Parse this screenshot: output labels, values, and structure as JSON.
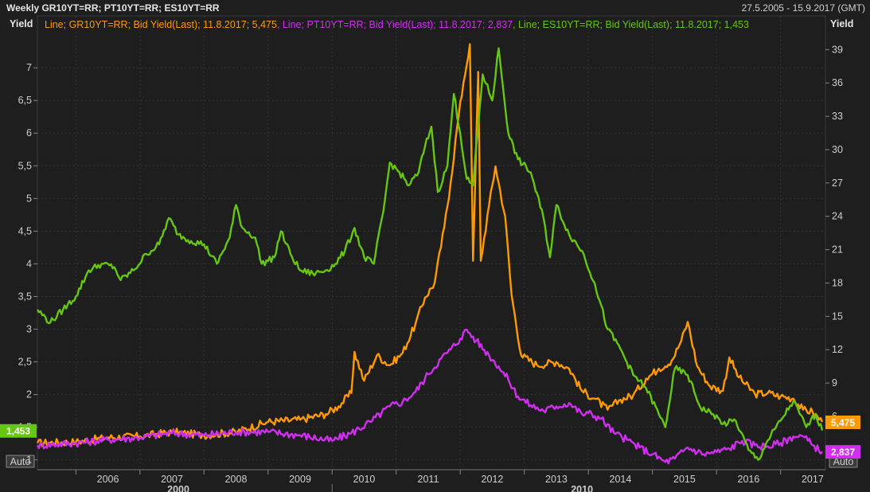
{
  "header": {
    "title": "Weekly GR10YT=RR; PT10YT=RR; ES10YT=RR",
    "range": "27.5.2005 - 15.9.2017 (GMT)"
  },
  "chart_data": {
    "type": "line",
    "left_axis": {
      "label": "Yield",
      "ticks": [
        1,
        1.5,
        2,
        2.5,
        3,
        3.5,
        4,
        4.5,
        5,
        5.5,
        6,
        6.5,
        7
      ],
      "tick_labels": [
        "1",
        "1,5",
        "2",
        "2,5",
        "3",
        "3,5",
        "4",
        "4,5",
        "5",
        "5,5",
        "6",
        "6,5",
        "7"
      ],
      "range": [
        0.85,
        7.55
      ],
      "auto_label": "Auto"
    },
    "right_axis": {
      "label": "Yield",
      "ticks": [
        3,
        6,
        9,
        12,
        15,
        18,
        21,
        24,
        27,
        30,
        33,
        36,
        39
      ],
      "tick_labels": [
        "3",
        "6",
        "9",
        "12",
        "15",
        "18",
        "21",
        "24",
        "27",
        "30",
        "33",
        "36",
        "39"
      ],
      "range": [
        1.2,
        40.6
      ],
      "auto_label": "Auto"
    },
    "x_axis": {
      "range": [
        2005.4,
        2017.7
      ],
      "years": [
        "2006",
        "2007",
        "2008",
        "2009",
        "2010",
        "2011",
        "2012",
        "2013",
        "2014",
        "2015",
        "2016",
        "2017"
      ],
      "decades": [
        "2000",
        "2010"
      ]
    },
    "grid": true,
    "legend_position": "top-left",
    "series": [
      {
        "name": "Line; GR10YT=RR; Bid Yield(Last); 11.8.2017; 5,475",
        "axis": "right",
        "color": "#ff9a00",
        "last_label": "5,475",
        "points": [
          [
            2005.4,
            3.6
          ],
          [
            2006.0,
            3.7
          ],
          [
            2006.5,
            4.1
          ],
          [
            2007.0,
            4.2
          ],
          [
            2007.5,
            4.6
          ],
          [
            2008.0,
            4.3
          ],
          [
            2008.5,
            4.6
          ],
          [
            2009.0,
            5.5
          ],
          [
            2009.5,
            5.7
          ],
          [
            2009.9,
            6.2
          ],
          [
            2010.1,
            6.9
          ],
          [
            2010.3,
            8.1
          ],
          [
            2010.35,
            11.8
          ],
          [
            2010.5,
            9.2
          ],
          [
            2010.7,
            11.5
          ],
          [
            2010.9,
            10.6
          ],
          [
            2011.1,
            11.7
          ],
          [
            2011.3,
            14.3
          ],
          [
            2011.45,
            16.7
          ],
          [
            2011.6,
            18.0
          ],
          [
            2011.75,
            23.0
          ],
          [
            2011.85,
            27.0
          ],
          [
            2011.95,
            32.0
          ],
          [
            2012.05,
            36.0
          ],
          [
            2012.15,
            39.5
          ],
          [
            2012.2,
            20.0
          ],
          [
            2012.28,
            37.0
          ],
          [
            2012.32,
            20.0
          ],
          [
            2012.45,
            25.0
          ],
          [
            2012.55,
            28.5
          ],
          [
            2012.7,
            24.0
          ],
          [
            2012.8,
            17.0
          ],
          [
            2012.95,
            11.5
          ],
          [
            2013.2,
            10.6
          ],
          [
            2013.5,
            10.9
          ],
          [
            2013.7,
            10.3
          ],
          [
            2013.9,
            8.3
          ],
          [
            2014.1,
            7.6
          ],
          [
            2014.3,
            6.6
          ],
          [
            2014.5,
            7.5
          ],
          [
            2014.7,
            7.9
          ],
          [
            2014.9,
            9.4
          ],
          [
            2015.1,
            10.3
          ],
          [
            2015.3,
            11.0
          ],
          [
            2015.45,
            12.8
          ],
          [
            2015.55,
            14.5
          ],
          [
            2015.7,
            10.5
          ],
          [
            2015.9,
            8.7
          ],
          [
            2016.1,
            8.3
          ],
          [
            2016.2,
            11.3
          ],
          [
            2016.35,
            9.5
          ],
          [
            2016.6,
            8.0
          ],
          [
            2016.8,
            8.1
          ],
          [
            2017.0,
            7.8
          ],
          [
            2017.2,
            7.6
          ],
          [
            2017.35,
            6.6
          ],
          [
            2017.5,
            6.4
          ],
          [
            2017.65,
            5.5
          ]
        ]
      },
      {
        "name": "Line; PT10YT=RR; Bid Yield(Last); 11.8.2017; 2,837",
        "axis": "right",
        "color": "#d22ef2",
        "last_label": "2,837",
        "points": [
          [
            2005.4,
            3.4
          ],
          [
            2006.0,
            3.6
          ],
          [
            2006.5,
            3.9
          ],
          [
            2007.0,
            4.1
          ],
          [
            2007.5,
            4.5
          ],
          [
            2008.0,
            4.3
          ],
          [
            2008.5,
            4.6
          ],
          [
            2009.0,
            4.6
          ],
          [
            2009.5,
            4.3
          ],
          [
            2010.0,
            3.8
          ],
          [
            2010.3,
            4.5
          ],
          [
            2010.6,
            5.5
          ],
          [
            2010.9,
            6.9
          ],
          [
            2011.1,
            7.3
          ],
          [
            2011.3,
            8.2
          ],
          [
            2011.5,
            9.8
          ],
          [
            2011.7,
            11.2
          ],
          [
            2011.85,
            12.0
          ],
          [
            2012.0,
            13.0
          ],
          [
            2012.1,
            13.8
          ],
          [
            2012.25,
            12.8
          ],
          [
            2012.45,
            11.5
          ],
          [
            2012.6,
            10.5
          ],
          [
            2012.75,
            9.3
          ],
          [
            2012.9,
            7.8
          ],
          [
            2013.1,
            7.0
          ],
          [
            2013.3,
            6.5
          ],
          [
            2013.5,
            6.9
          ],
          [
            2013.7,
            7.2
          ],
          [
            2013.9,
            6.2
          ],
          [
            2014.0,
            6.3
          ],
          [
            2014.2,
            5.8
          ],
          [
            2014.4,
            4.5
          ],
          [
            2014.6,
            3.9
          ],
          [
            2014.8,
            3.2
          ],
          [
            2015.0,
            2.6
          ],
          [
            2015.2,
            1.9
          ],
          [
            2015.35,
            2.2
          ],
          [
            2015.55,
            3.2
          ],
          [
            2015.8,
            2.6
          ],
          [
            2016.0,
            2.8
          ],
          [
            2016.2,
            3.1
          ],
          [
            2016.4,
            3.8
          ],
          [
            2016.6,
            3.4
          ],
          [
            2016.8,
            3.3
          ],
          [
            2017.0,
            3.6
          ],
          [
            2017.2,
            4.2
          ],
          [
            2017.35,
            4.2
          ],
          [
            2017.5,
            3.4
          ],
          [
            2017.65,
            2.84
          ]
        ]
      },
      {
        "name": "Line; ES10YT=RR; Bid Yield(Last); 11.8.2017; 1,453",
        "axis": "left",
        "color": "#66c611",
        "last_label": "1,453",
        "points": [
          [
            2005.4,
            3.3
          ],
          [
            2005.6,
            3.1
          ],
          [
            2005.8,
            3.3
          ],
          [
            2006.0,
            3.5
          ],
          [
            2006.2,
            3.9
          ],
          [
            2006.4,
            4.0
          ],
          [
            2006.6,
            3.95
          ],
          [
            2006.7,
            3.75
          ],
          [
            2006.9,
            3.9
          ],
          [
            2007.1,
            4.15
          ],
          [
            2007.3,
            4.3
          ],
          [
            2007.45,
            4.7
          ],
          [
            2007.6,
            4.45
          ],
          [
            2007.8,
            4.35
          ],
          [
            2008.0,
            4.3
          ],
          [
            2008.2,
            4.0
          ],
          [
            2008.4,
            4.4
          ],
          [
            2008.5,
            4.9
          ],
          [
            2008.6,
            4.55
          ],
          [
            2008.8,
            4.4
          ],
          [
            2008.9,
            4.0
          ],
          [
            2009.1,
            4.1
          ],
          [
            2009.2,
            4.5
          ],
          [
            2009.35,
            4.15
          ],
          [
            2009.5,
            3.9
          ],
          [
            2009.7,
            3.85
          ],
          [
            2009.9,
            3.9
          ],
          [
            2010.05,
            4.0
          ],
          [
            2010.2,
            4.2
          ],
          [
            2010.35,
            4.55
          ],
          [
            2010.5,
            4.1
          ],
          [
            2010.65,
            4.0
          ],
          [
            2010.8,
            4.8
          ],
          [
            2010.9,
            5.55
          ],
          [
            2011.05,
            5.4
          ],
          [
            2011.2,
            5.2
          ],
          [
            2011.35,
            5.4
          ],
          [
            2011.45,
            5.8
          ],
          [
            2011.55,
            6.1
          ],
          [
            2011.65,
            5.1
          ],
          [
            2011.8,
            5.5
          ],
          [
            2011.9,
            6.6
          ],
          [
            2012.0,
            6.0
          ],
          [
            2012.1,
            5.3
          ],
          [
            2012.2,
            5.2
          ],
          [
            2012.35,
            6.9
          ],
          [
            2012.5,
            6.5
          ],
          [
            2012.6,
            7.3
          ],
          [
            2012.75,
            6.0
          ],
          [
            2012.9,
            5.6
          ],
          [
            2013.1,
            5.4
          ],
          [
            2013.3,
            4.7
          ],
          [
            2013.4,
            4.1
          ],
          [
            2013.5,
            4.9
          ],
          [
            2013.7,
            4.45
          ],
          [
            2013.9,
            4.2
          ],
          [
            2014.1,
            3.7
          ],
          [
            2014.3,
            3.0
          ],
          [
            2014.5,
            2.7
          ],
          [
            2014.7,
            2.3
          ],
          [
            2014.9,
            2.1
          ],
          [
            2015.1,
            1.7
          ],
          [
            2015.2,
            1.5
          ],
          [
            2015.35,
            2.4
          ],
          [
            2015.55,
            2.3
          ],
          [
            2015.75,
            1.8
          ],
          [
            2015.95,
            1.7
          ],
          [
            2016.1,
            1.55
          ],
          [
            2016.3,
            1.6
          ],
          [
            2016.5,
            1.15
          ],
          [
            2016.65,
            1.0
          ],
          [
            2016.8,
            1.3
          ],
          [
            2017.0,
            1.6
          ],
          [
            2017.2,
            1.9
          ],
          [
            2017.4,
            1.5
          ],
          [
            2017.55,
            1.7
          ],
          [
            2017.65,
            1.45
          ]
        ]
      }
    ]
  }
}
